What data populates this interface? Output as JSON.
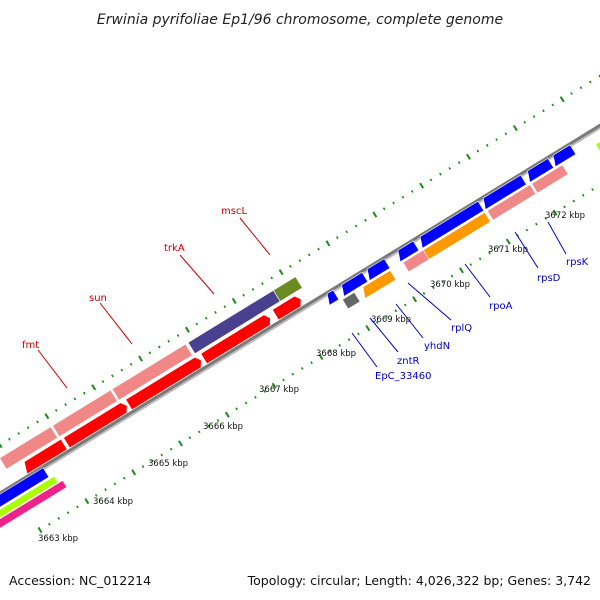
{
  "title": "Erwinia pyrifoliae Ep1/96 chromosome, complete genome",
  "footer": {
    "accession": "Accession: NC_012214",
    "summary": "Topology: circular; Length: 4,026,322 bp; Genes: 3,742"
  },
  "ticks": [
    "3663 kbp",
    "3664 kbp",
    "3665 kbp",
    "3666 kbp",
    "3667 kbp",
    "3668 kbp",
    "3669 kbp",
    "3670 kbp",
    "3671 kbp",
    "3672 kbp"
  ],
  "upper_genes": [
    "fmt",
    "sun",
    "trkA",
    "mscL"
  ],
  "lower_genes": [
    "EpC_33460",
    "zntR",
    "yhdN",
    "rplQ",
    "rpoA",
    "rpsD",
    "rpsK"
  ],
  "colors": {
    "red": "#ff0000",
    "pink": "#f08888",
    "navy": "#4a4090",
    "olive": "#6b8a22",
    "blue": "#0000ff",
    "orange": "#ff9900",
    "gray": "#666666",
    "lime": "#aaff00",
    "magenta": "#ee2288",
    "dots": "#1a8a1a"
  }
}
